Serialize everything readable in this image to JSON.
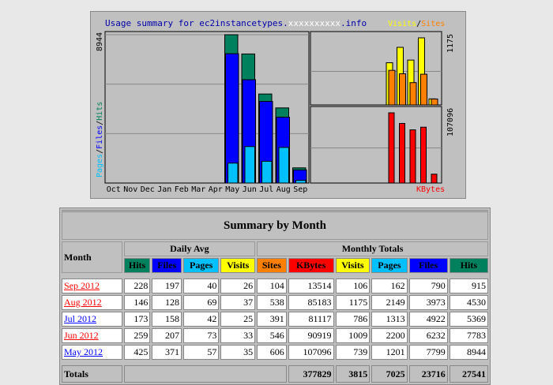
{
  "chart_data": [
    {
      "type": "bar",
      "title": "Usage summary for ec2instancetypes.",
      "title_suffix": ".info",
      "panel": "monthly-hits-files-pages",
      "categories": [
        "Oct",
        "Nov",
        "Dec",
        "Jan",
        "Feb",
        "Mar",
        "Apr",
        "May",
        "Jun",
        "Jul",
        "Aug",
        "Sep"
      ],
      "ymax_label": "8944",
      "ylabel_parts": [
        "Pages",
        "/",
        "Files",
        "/",
        "Hits"
      ],
      "series": [
        {
          "name": "Hits",
          "color": "#00805c",
          "values": [
            0,
            0,
            0,
            0,
            0,
            0,
            0,
            8944,
            7783,
            5369,
            4530,
            915
          ]
        },
        {
          "name": "Files",
          "color": "#0000ff",
          "values": [
            0,
            0,
            0,
            0,
            0,
            0,
            0,
            7799,
            6232,
            4922,
            3973,
            790
          ]
        },
        {
          "name": "Pages",
          "color": "#00c0ff",
          "values": [
            0,
            0,
            0,
            0,
            0,
            0,
            0,
            1201,
            2200,
            1313,
            2149,
            162
          ]
        }
      ]
    },
    {
      "type": "bar",
      "panel": "visits-sites",
      "ymax_label": "1175",
      "legend": [
        "Visits",
        "/",
        "Sites"
      ],
      "series": [
        {
          "name": "Visits",
          "color": "#ffff00",
          "values": [
            739,
            1009,
            786,
            1175,
            106
          ]
        },
        {
          "name": "Sites",
          "color": "#ff8000",
          "values": [
            606,
            546,
            391,
            538,
            104
          ]
        }
      ]
    },
    {
      "type": "bar",
      "panel": "kbytes",
      "ymax_label": "107096",
      "legend": [
        "KBytes"
      ],
      "series": [
        {
          "name": "KBytes",
          "color": "#ff0000",
          "values": [
            107096,
            90919,
            81117,
            85183,
            13514
          ]
        }
      ]
    }
  ],
  "colors": {
    "hits": "#00805c",
    "files": "#0000ff",
    "pages": "#00c0ff",
    "visits": "#ffff00",
    "sites": "#ff8000",
    "kbytes": "#ff0000",
    "title_text": "#0000aa",
    "link_red": "#ff0000",
    "link_blue": "#0000ff"
  },
  "summary": {
    "title": "Summary by Month",
    "month_label": "Month",
    "daily_avg_label": "Daily Avg",
    "monthly_totals_label": "Monthly Totals",
    "headers": {
      "hits": "Hits",
      "files": "Files",
      "pages": "Pages",
      "visits": "Visits",
      "sites": "Sites",
      "kbytes": "KBytes"
    },
    "rows": [
      {
        "month": "Sep 2012",
        "link": "red",
        "d_hits": "228",
        "d_files": "197",
        "d_pages": "40",
        "d_visits": "26",
        "sites": "104",
        "kbytes": "13514",
        "visits": "106",
        "pages": "162",
        "files": "790",
        "hits": "915"
      },
      {
        "month": "Aug 2012",
        "link": "red",
        "d_hits": "146",
        "d_files": "128",
        "d_pages": "69",
        "d_visits": "37",
        "sites": "538",
        "kbytes": "85183",
        "visits": "1175",
        "pages": "2149",
        "files": "3973",
        "hits": "4530"
      },
      {
        "month": "Jul 2012",
        "link": "blue",
        "d_hits": "173",
        "d_files": "158",
        "d_pages": "42",
        "d_visits": "25",
        "sites": "391",
        "kbytes": "81117",
        "visits": "786",
        "pages": "1313",
        "files": "4922",
        "hits": "5369"
      },
      {
        "month": "Jun 2012",
        "link": "red",
        "d_hits": "259",
        "d_files": "207",
        "d_pages": "73",
        "d_visits": "33",
        "sites": "546",
        "kbytes": "90919",
        "visits": "1009",
        "pages": "2200",
        "files": "6232",
        "hits": "7783"
      },
      {
        "month": "May 2012",
        "link": "blue",
        "d_hits": "425",
        "d_files": "371",
        "d_pages": "57",
        "d_visits": "35",
        "sites": "606",
        "kbytes": "107096",
        "visits": "739",
        "pages": "1201",
        "files": "7799",
        "hits": "8944"
      }
    ],
    "totals": {
      "label": "Totals",
      "kbytes": "377829",
      "visits": "3815",
      "pages": "7025",
      "files": "23716",
      "hits": "27541"
    }
  }
}
